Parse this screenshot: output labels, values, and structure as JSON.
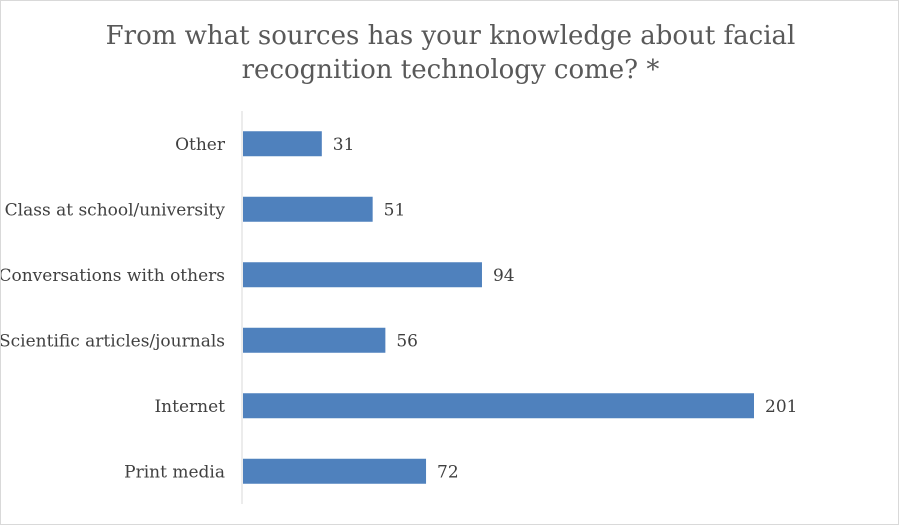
{
  "chart_data": {
    "type": "bar",
    "orientation": "horizontal",
    "title_lines": [
      "From what sources has your knowledge about facial",
      "recognition technology come? *"
    ],
    "categories": [
      "Other",
      "Class at school/university",
      "Conversations with others",
      "Scientific articles/journals",
      "Internet",
      "Print media"
    ],
    "values": [
      31,
      51,
      94,
      56,
      201,
      72
    ],
    "xlabel": "",
    "ylabel": "",
    "xlim": [
      0,
      201
    ],
    "grid": false,
    "legend": "none",
    "bar_color": "#4f81bd",
    "data_labels": true
  }
}
